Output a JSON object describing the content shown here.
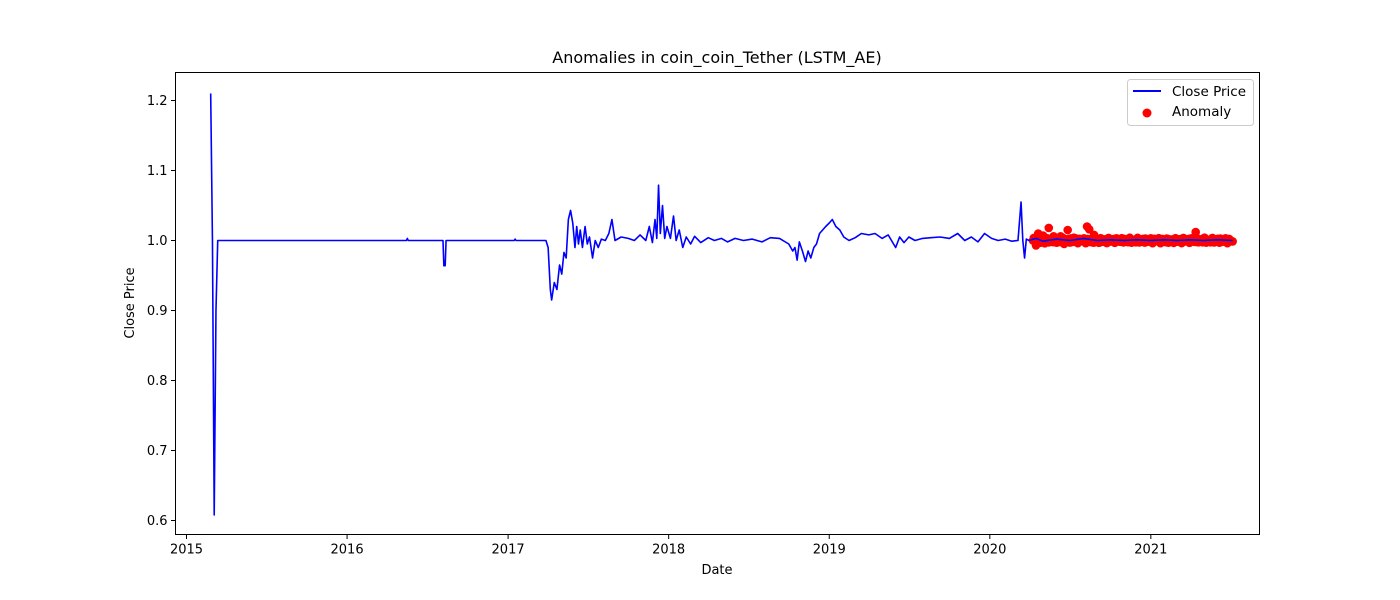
{
  "chart_data": {
    "type": "line",
    "title": "Anomalies in coin_coin_Tether (LSTM_AE)",
    "xlabel": "Date",
    "ylabel": "Close Price",
    "xlim": [
      "2014-12-07",
      "2021-09-05"
    ],
    "ylim": [
      0.58,
      1.24
    ],
    "x_ticks": [
      "2015",
      "2016",
      "2017",
      "2018",
      "2019",
      "2020",
      "2021"
    ],
    "x_tick_dates": [
      "2015-01-01",
      "2016-01-01",
      "2017-01-01",
      "2018-01-01",
      "2019-01-01",
      "2020-01-01",
      "2021-01-01"
    ],
    "y_ticks": [
      "0.6",
      "0.7",
      "0.8",
      "0.9",
      "1.0",
      "1.1",
      "1.2"
    ],
    "y_tick_values": [
      0.6,
      0.7,
      0.8,
      0.9,
      1.0,
      1.1,
      1.2
    ],
    "grid": false,
    "legend_position": "top-right",
    "series": [
      {
        "name": "Close Price",
        "color": "#0000ff",
        "points": [
          [
            "2015-02-25",
            1.21
          ],
          [
            "2015-03-01",
            1.0
          ],
          [
            "2015-03-05",
            0.608
          ],
          [
            "2015-03-09",
            0.9
          ],
          [
            "2015-03-13",
            1.0
          ],
          [
            "2015-06-01",
            1.0
          ],
          [
            "2015-09-01",
            1.0
          ],
          [
            "2015-12-01",
            1.0
          ],
          [
            "2016-02-01",
            1.0
          ],
          [
            "2016-05-15",
            1.0
          ],
          [
            "2016-05-17",
            1.003
          ],
          [
            "2016-05-19",
            1.0
          ],
          [
            "2016-08-06",
            1.0
          ],
          [
            "2016-08-08",
            0.964
          ],
          [
            "2016-08-11",
            0.964
          ],
          [
            "2016-08-13",
            1.0
          ],
          [
            "2016-12-01",
            1.0
          ],
          [
            "2017-01-15",
            1.0
          ],
          [
            "2017-01-17",
            1.002
          ],
          [
            "2017-01-19",
            1.0
          ],
          [
            "2017-03-20",
            1.0
          ],
          [
            "2017-03-28",
            1.0
          ],
          [
            "2017-04-02",
            0.99
          ],
          [
            "2017-04-07",
            0.93
          ],
          [
            "2017-04-10",
            0.915
          ],
          [
            "2017-04-16",
            0.94
          ],
          [
            "2017-04-22",
            0.93
          ],
          [
            "2017-04-28",
            0.965
          ],
          [
            "2017-05-03",
            0.952
          ],
          [
            "2017-05-08",
            0.983
          ],
          [
            "2017-05-13",
            0.975
          ],
          [
            "2017-05-18",
            1.03
          ],
          [
            "2017-05-23",
            1.043
          ],
          [
            "2017-05-28",
            1.025
          ],
          [
            "2017-06-02",
            0.99
          ],
          [
            "2017-06-06",
            1.02
          ],
          [
            "2017-06-10",
            0.995
          ],
          [
            "2017-06-14",
            1.015
          ],
          [
            "2017-06-19",
            0.99
          ],
          [
            "2017-06-25",
            1.02
          ],
          [
            "2017-06-30",
            0.995
          ],
          [
            "2017-07-05",
            1.005
          ],
          [
            "2017-07-12",
            0.975
          ],
          [
            "2017-07-18",
            1.0
          ],
          [
            "2017-07-25",
            0.99
          ],
          [
            "2017-08-01",
            1.002
          ],
          [
            "2017-08-10",
            1.0
          ],
          [
            "2017-08-18",
            1.01
          ],
          [
            "2017-08-25",
            1.03
          ],
          [
            "2017-09-01",
            1.0
          ],
          [
            "2017-09-15",
            1.005
          ],
          [
            "2017-10-01",
            1.003
          ],
          [
            "2017-10-15",
            1.0
          ],
          [
            "2017-10-28",
            1.008
          ],
          [
            "2017-11-10",
            1.0
          ],
          [
            "2017-11-18",
            1.02
          ],
          [
            "2017-11-25",
            0.997
          ],
          [
            "2017-12-01",
            1.03
          ],
          [
            "2017-12-05",
            1.003
          ],
          [
            "2017-12-09",
            1.079
          ],
          [
            "2017-12-13",
            1.01
          ],
          [
            "2017-12-18",
            1.05
          ],
          [
            "2017-12-23",
            1.003
          ],
          [
            "2017-12-28",
            1.02
          ],
          [
            "2018-01-05",
            1.003
          ],
          [
            "2018-01-12",
            1.035
          ],
          [
            "2018-01-18",
            1.0
          ],
          [
            "2018-01-25",
            1.015
          ],
          [
            "2018-02-02",
            0.99
          ],
          [
            "2018-02-10",
            1.005
          ],
          [
            "2018-02-20",
            0.995
          ],
          [
            "2018-03-01",
            1.006
          ],
          [
            "2018-03-15",
            0.997
          ],
          [
            "2018-04-01",
            1.004
          ],
          [
            "2018-04-15",
            1.0
          ],
          [
            "2018-05-01",
            1.003
          ],
          [
            "2018-05-15",
            0.998
          ],
          [
            "2018-06-01",
            1.003
          ],
          [
            "2018-06-20",
            1.0
          ],
          [
            "2018-07-10",
            1.002
          ],
          [
            "2018-08-01",
            0.998
          ],
          [
            "2018-08-20",
            1.004
          ],
          [
            "2018-09-10",
            1.003
          ],
          [
            "2018-10-01",
            0.995
          ],
          [
            "2018-10-10",
            0.985
          ],
          [
            "2018-10-15",
            0.99
          ],
          [
            "2018-10-20",
            0.972
          ],
          [
            "2018-10-25",
            0.998
          ],
          [
            "2018-11-01",
            0.985
          ],
          [
            "2018-11-08",
            0.97
          ],
          [
            "2018-11-14",
            0.985
          ],
          [
            "2018-11-20",
            0.975
          ],
          [
            "2018-11-27",
            0.99
          ],
          [
            "2018-12-03",
            0.995
          ],
          [
            "2018-12-10",
            1.01
          ],
          [
            "2018-12-17",
            1.015
          ],
          [
            "2018-12-24",
            1.02
          ],
          [
            "2019-01-01",
            1.025
          ],
          [
            "2019-01-08",
            1.03
          ],
          [
            "2019-01-16",
            1.02
          ],
          [
            "2019-01-25",
            1.015
          ],
          [
            "2019-02-03",
            1.005
          ],
          [
            "2019-02-15",
            1.0
          ],
          [
            "2019-03-01",
            1.004
          ],
          [
            "2019-03-15",
            1.01
          ],
          [
            "2019-04-01",
            1.008
          ],
          [
            "2019-04-15",
            1.01
          ],
          [
            "2019-05-01",
            1.003
          ],
          [
            "2019-05-15",
            1.008
          ],
          [
            "2019-06-01",
            0.99
          ],
          [
            "2019-06-10",
            1.005
          ],
          [
            "2019-06-20",
            0.997
          ],
          [
            "2019-07-01",
            1.005
          ],
          [
            "2019-07-15",
            1.0
          ],
          [
            "2019-08-01",
            1.003
          ],
          [
            "2019-08-20",
            1.004
          ],
          [
            "2019-09-10",
            1.005
          ],
          [
            "2019-10-01",
            1.003
          ],
          [
            "2019-10-20",
            1.01
          ],
          [
            "2019-11-05",
            1.0
          ],
          [
            "2019-11-20",
            1.005
          ],
          [
            "2019-12-05",
            0.998
          ],
          [
            "2019-12-20",
            1.01
          ],
          [
            "2020-01-05",
            1.003
          ],
          [
            "2020-01-20",
            1.0
          ],
          [
            "2020-02-05",
            1.002
          ],
          [
            "2020-02-20",
            0.999
          ],
          [
            "2020-03-05",
            1.0
          ],
          [
            "2020-03-12",
            1.055
          ],
          [
            "2020-03-16",
            1.0
          ],
          [
            "2020-03-20",
            0.975
          ],
          [
            "2020-03-24",
            1.002
          ],
          [
            "2020-03-30",
            1.0
          ],
          [
            "2020-04-15",
            1.003
          ],
          [
            "2020-05-01",
            0.999
          ],
          [
            "2020-06-01",
            1.002
          ],
          [
            "2020-07-01",
            1.0
          ],
          [
            "2020-08-01",
            1.003
          ],
          [
            "2020-09-01",
            1.0
          ],
          [
            "2020-10-01",
            1.001
          ],
          [
            "2020-11-01",
            1.0
          ],
          [
            "2020-12-01",
            1.001
          ],
          [
            "2021-01-01",
            1.0
          ],
          [
            "2021-02-01",
            1.001
          ],
          [
            "2021-03-01",
            1.0
          ],
          [
            "2021-04-01",
            1.001
          ],
          [
            "2021-05-01",
            1.0
          ],
          [
            "2021-06-01",
            1.001
          ],
          [
            "2021-07-06",
            1.0
          ]
        ]
      },
      {
        "name": "Anomaly",
        "type": "scatter",
        "color": "#ff0000",
        "range": [
          "2020-04-08",
          "2021-07-06"
        ],
        "base_value": 1.0,
        "jitter": 0.004,
        "spacing_days": 2,
        "points": [
          [
            "2020-04-15",
            0.993
          ],
          [
            "2020-04-20",
            1.01
          ],
          [
            "2020-05-01",
            1.007
          ],
          [
            "2020-05-05",
            0.996
          ],
          [
            "2020-05-14",
            1.018
          ],
          [
            "2020-05-25",
            1.006
          ],
          [
            "2020-06-10",
            1.006
          ],
          [
            "2020-06-18",
            0.995
          ],
          [
            "2020-06-26",
            1.015
          ],
          [
            "2020-07-10",
            1.004
          ],
          [
            "2020-08-09",
            1.02
          ],
          [
            "2020-08-14",
            1.016
          ],
          [
            "2020-08-25",
            1.008
          ],
          [
            "2021-04-13",
            1.012
          ]
        ]
      }
    ]
  }
}
